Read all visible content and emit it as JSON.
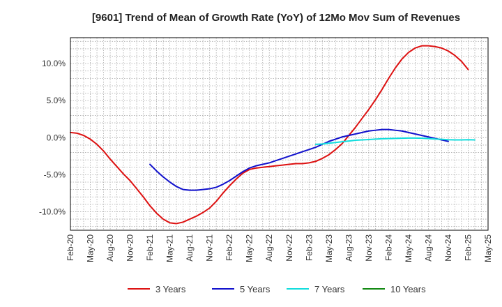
{
  "chart_data": {
    "type": "line",
    "title": "[9601]  Trend of Mean of Growth Rate (YoY) of 12Mo Mov Sum of Revenues",
    "xlabel": "",
    "ylabel": "",
    "x_tick_labels": [
      "Feb-20",
      "May-20",
      "Aug-20",
      "Nov-20",
      "Feb-21",
      "May-21",
      "Aug-21",
      "Nov-21",
      "Feb-22",
      "May-22",
      "Aug-22",
      "Nov-22",
      "Feb-23",
      "May-23",
      "Aug-23",
      "Nov-23",
      "Feb-24",
      "May-24",
      "Aug-24",
      "Nov-24",
      "Feb-25",
      "May-25"
    ],
    "y_ticks": [
      -10,
      -5,
      0,
      5,
      10
    ],
    "y_tick_labels": [
      "-10.0%",
      "-5.0%",
      "0.0%",
      "5.0%",
      "10.0%"
    ],
    "ylim": [
      -12.5,
      13.5
    ],
    "xlim_index": [
      0,
      63
    ],
    "grid": true,
    "legend_position": "bottom",
    "series": [
      {
        "name": "3 Years",
        "color": "#dd1111",
        "start_index": 0,
        "values": [
          0.7,
          0.6,
          0.3,
          -0.2,
          -0.9,
          -1.8,
          -2.9,
          -3.9,
          -4.9,
          -5.8,
          -6.9,
          -8.0,
          -9.2,
          -10.2,
          -11.0,
          -11.5,
          -11.6,
          -11.4,
          -11.0,
          -10.6,
          -10.1,
          -9.5,
          -8.6,
          -7.5,
          -6.5,
          -5.6,
          -4.8,
          -4.3,
          -4.1,
          -4.0,
          -3.9,
          -3.8,
          -3.7,
          -3.6,
          -3.5,
          -3.5,
          -3.4,
          -3.2,
          -2.8,
          -2.3,
          -1.6,
          -0.8,
          0.3,
          1.4,
          2.6,
          3.8,
          5.1,
          6.5,
          8.0,
          9.4,
          10.6,
          11.5,
          12.1,
          12.4,
          12.4,
          12.3,
          12.1,
          11.7,
          11.1,
          10.3,
          9.2
        ]
      },
      {
        "name": "5 Years",
        "color": "#1111cc",
        "start_index": 12,
        "values": [
          -3.6,
          -4.5,
          -5.3,
          -6.0,
          -6.6,
          -7.0,
          -7.1,
          -7.1,
          -7.0,
          -6.9,
          -6.7,
          -6.3,
          -5.8,
          -5.2,
          -4.6,
          -4.1,
          -3.8,
          -3.6,
          -3.4,
          -3.1,
          -2.8,
          -2.5,
          -2.2,
          -1.9,
          -1.6,
          -1.3,
          -0.9,
          -0.5,
          -0.2,
          0.1,
          0.3,
          0.5,
          0.7,
          0.9,
          1.0,
          1.1,
          1.1,
          1.0,
          0.9,
          0.7,
          0.5,
          0.3,
          0.1,
          -0.1,
          -0.3,
          -0.5
        ]
      },
      {
        "name": "7 Years",
        "color": "#11dddd",
        "start_index": 37,
        "values": [
          -0.9,
          -0.85,
          -0.75,
          -0.65,
          -0.55,
          -0.45,
          -0.35,
          -0.3,
          -0.25,
          -0.2,
          -0.15,
          -0.12,
          -0.1,
          -0.08,
          -0.05,
          -0.05,
          -0.08,
          -0.12,
          -0.18,
          -0.22,
          -0.28,
          -0.3,
          -0.3,
          -0.28,
          -0.3
        ]
      },
      {
        "name": "10 Years",
        "color": "#118811",
        "start_index": 63,
        "values": []
      }
    ]
  }
}
